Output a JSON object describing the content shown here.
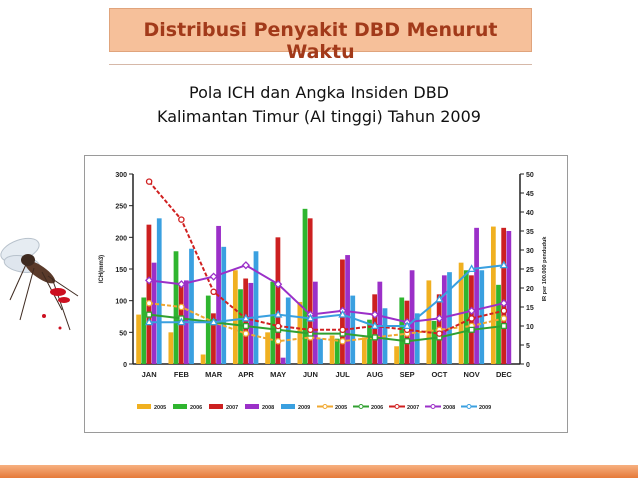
{
  "slide": {
    "title": "Distribusi Penyakit DBD Menurut Waktu",
    "subtitle_line1": "Pola ICH dan Angka Insiden DBD",
    "subtitle_line2": "Kalimantan Timur (AI tinggi) Tahun 2009"
  },
  "colors": {
    "banner": "#f6c09a",
    "title_text": "#a23a1a",
    "bottom_bar": "#e57a3a"
  },
  "chart_data": {
    "type": "bar",
    "categories": [
      "JAN",
      "FEB",
      "MAR",
      "APR",
      "MAY",
      "JUN",
      "JUL",
      "AUG",
      "SEP",
      "OCT",
      "NOV",
      "DEC"
    ],
    "ylabel": "ICH(mm3)",
    "y2label": "IR per 100.000 penduduk",
    "ylim": [
      0,
      300
    ],
    "y2lim": [
      0,
      50
    ],
    "yticks": [
      0,
      50,
      100,
      150,
      200,
      250,
      300
    ],
    "y2ticks": [
      0,
      5,
      10,
      15,
      20,
      25,
      30,
      35,
      40,
      45,
      50
    ],
    "bar_series": [
      {
        "name": "2005",
        "color": "#f0b020",
        "values": [
          78,
          50,
          15,
          148,
          50,
          98,
          45,
          42,
          28,
          132,
          160,
          217
        ]
      },
      {
        "name": "2006",
        "color": "#2fb52f",
        "values": [
          105,
          178,
          108,
          118,
          130,
          245,
          40,
          70,
          105,
          68,
          148,
          125
        ]
      },
      {
        "name": "2007",
        "color": "#cc2020",
        "values": [
          220,
          125,
          80,
          135,
          200,
          230,
          165,
          110,
          100,
          110,
          140,
          215
        ]
      },
      {
        "name": "2008",
        "color": "#9b30c8",
        "values": [
          160,
          132,
          218,
          128,
          10,
          130,
          172,
          130,
          148,
          140,
          215,
          210
        ]
      },
      {
        "name": "2009",
        "color": "#3aa0e0",
        "values": [
          230,
          182,
          185,
          178,
          105,
          40,
          108,
          88,
          80,
          145,
          148,
          0
        ]
      }
    ],
    "line_series": [
      {
        "name": "2005",
        "color": "#f0a830",
        "marker": "circle",
        "values": [
          16,
          15,
          11,
          8,
          6,
          7,
          6,
          7,
          8,
          9,
          10,
          12
        ]
      },
      {
        "name": "2006",
        "color": "#30a030",
        "marker": "square",
        "values": [
          13,
          12,
          11,
          10,
          9,
          8,
          8,
          7,
          6,
          7,
          9,
          10
        ]
      },
      {
        "name": "2007",
        "color": "#d02020",
        "marker": "circle",
        "values": [
          48,
          38,
          19,
          12,
          10,
          9,
          9,
          10,
          9,
          8,
          12,
          14
        ]
      },
      {
        "name": "2008",
        "color": "#9b30c8",
        "marker": "diamond",
        "values": [
          22,
          21,
          23,
          26,
          21,
          13,
          14,
          13,
          11,
          12,
          14,
          16
        ]
      },
      {
        "name": "2009",
        "color": "#3aa0e0",
        "marker": "triangle",
        "values": [
          11,
          11,
          11,
          12,
          13,
          12,
          13,
          10,
          10,
          17,
          25,
          26
        ]
      }
    ]
  }
}
